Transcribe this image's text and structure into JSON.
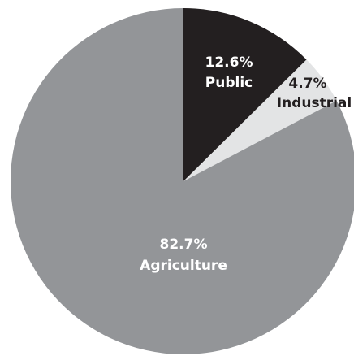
{
  "chart_data": {
    "type": "pie",
    "title": "",
    "slices": [
      {
        "label": "Public",
        "value": 12.6,
        "value_text": "12.6%",
        "color": "#231f20",
        "label_color": "#ffffff"
      },
      {
        "label": "Industrial",
        "value": 4.7,
        "value_text": "4.7%",
        "color": "#e3e4e5",
        "label_color": "#231f20"
      },
      {
        "label": "Agriculture",
        "value": 82.7,
        "value_text": "82.7%",
        "color": "#939598",
        "label_color": "#ffffff"
      }
    ],
    "start": "12 o'clock",
    "direction": "clockwise",
    "legend": "none"
  }
}
